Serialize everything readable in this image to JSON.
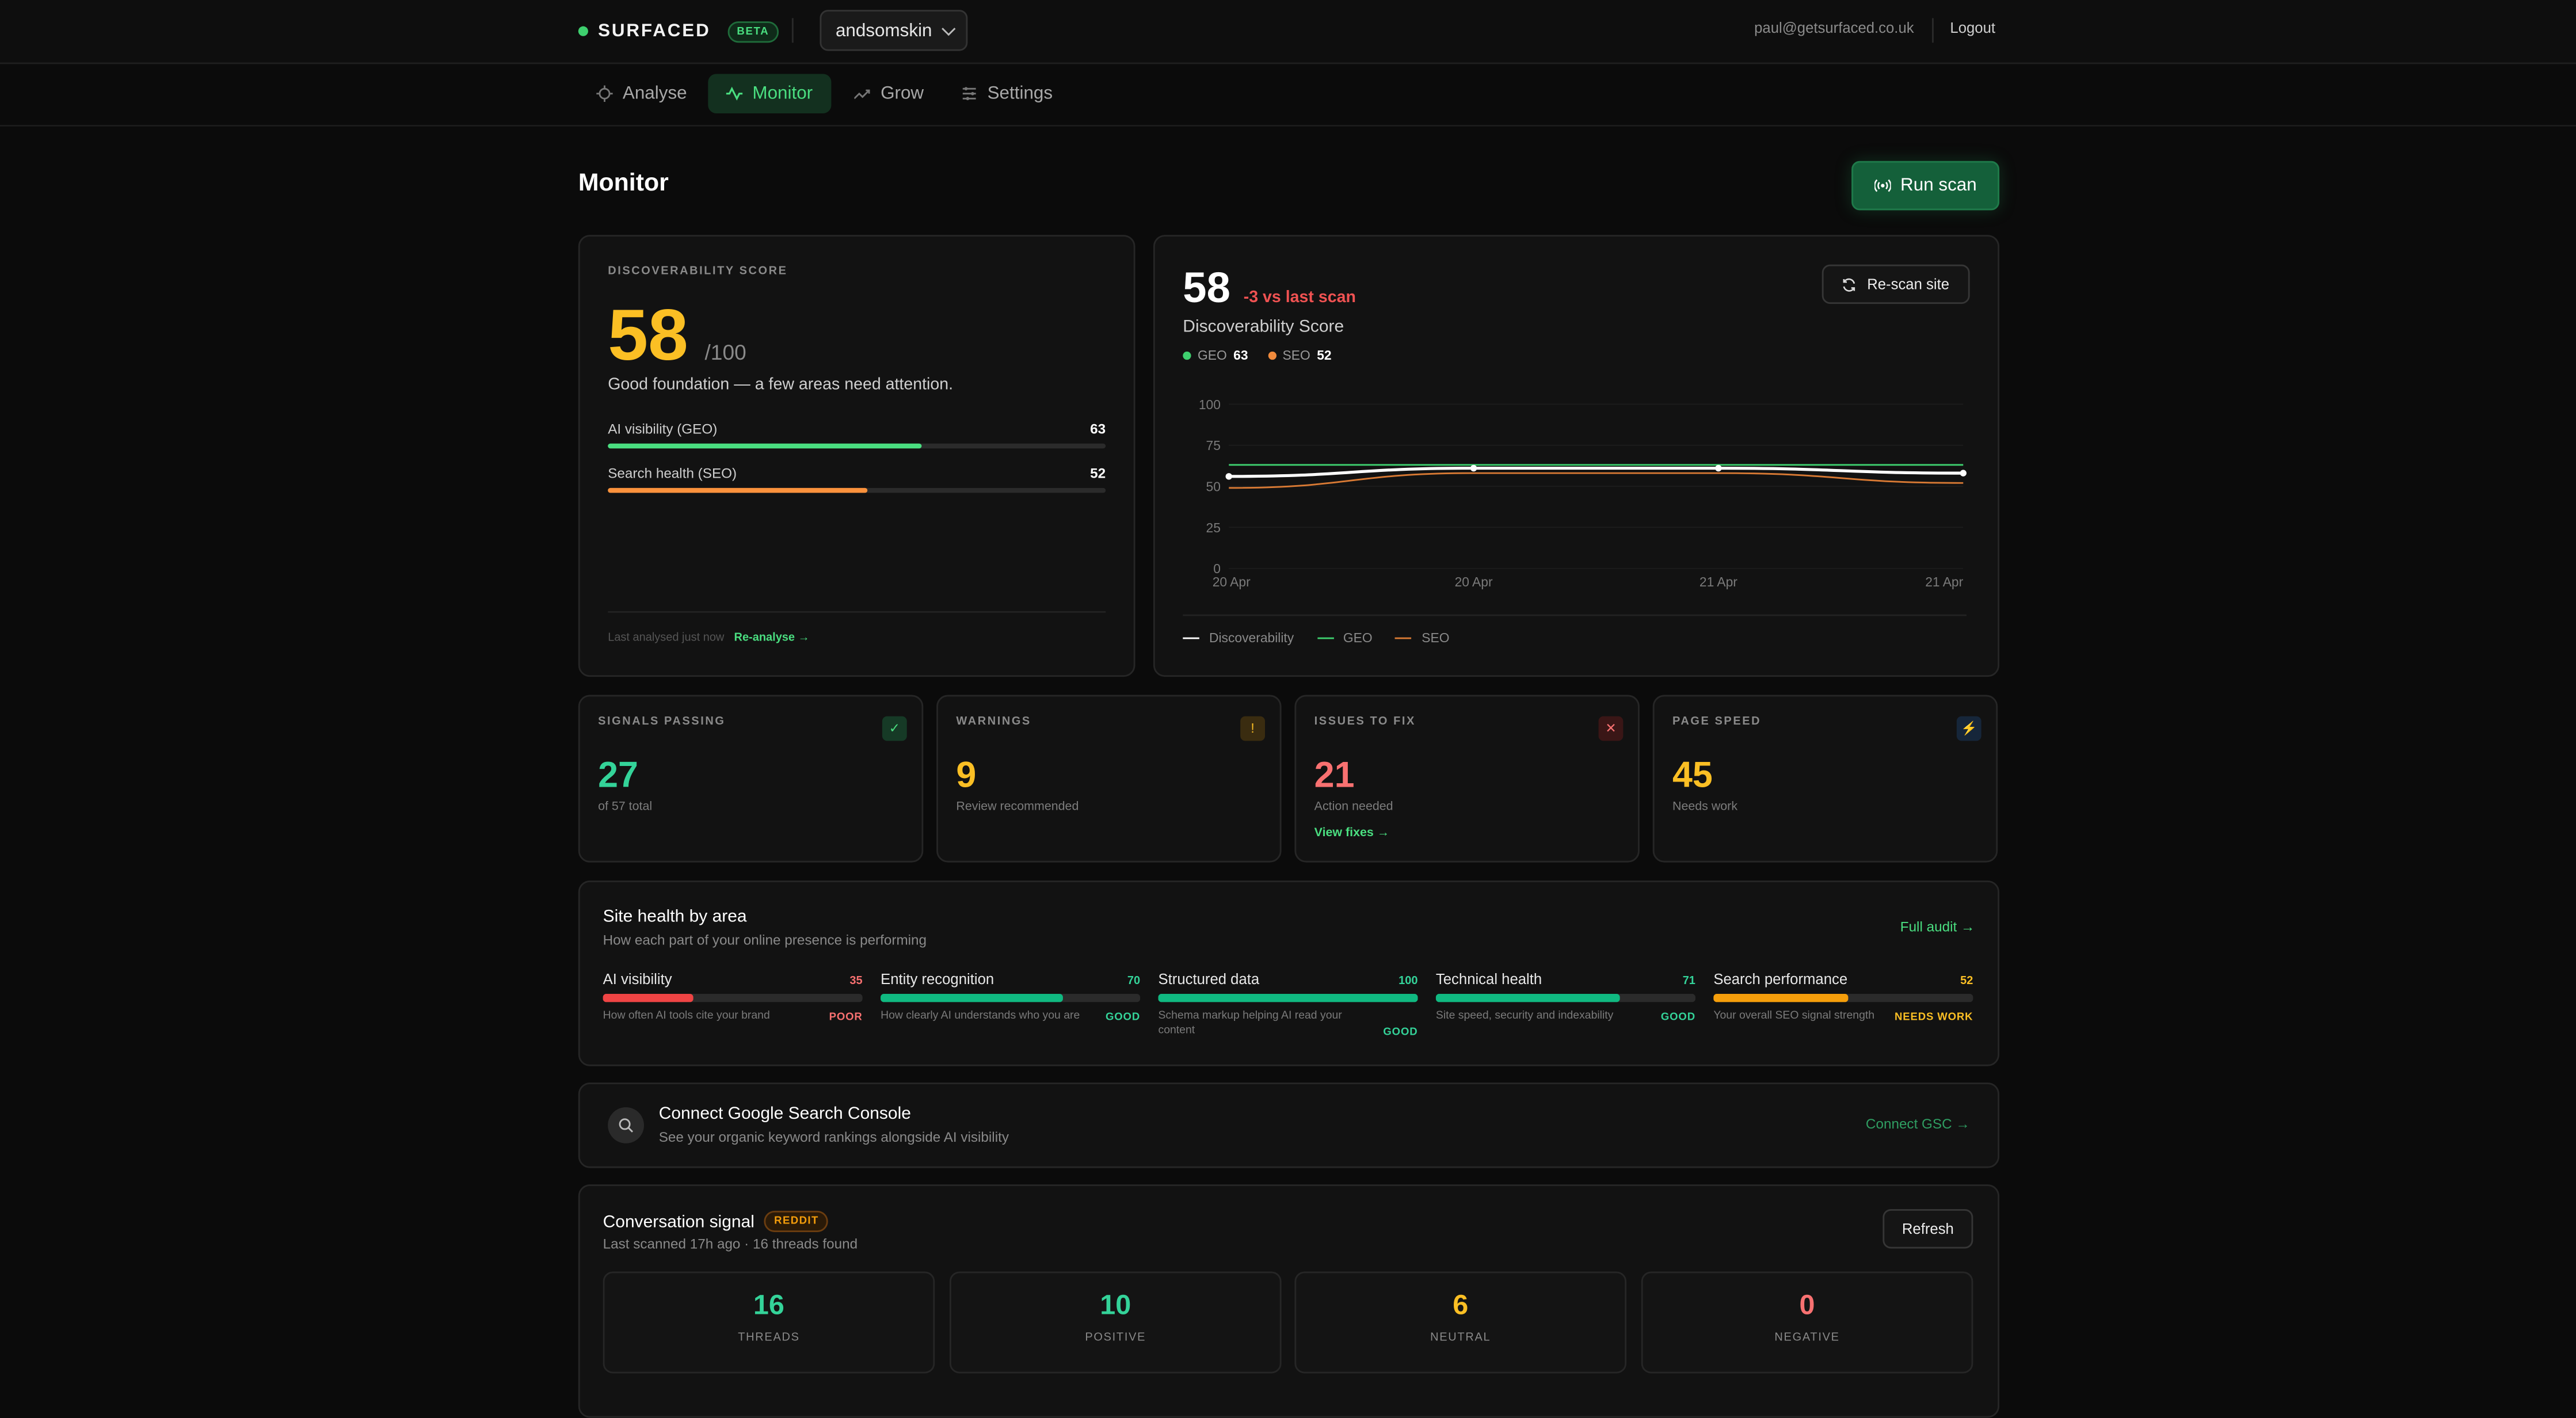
{
  "header": {
    "brand": "SURFACED",
    "beta": "BETA",
    "site": "andsomskin",
    "email": "paul@getsurfaced.co.uk",
    "logout": "Logout"
  },
  "nav": {
    "items": [
      {
        "label": "Analyse",
        "icon": "crosshair-icon",
        "active": false
      },
      {
        "label": "Monitor",
        "icon": "pulse-icon",
        "active": true
      },
      {
        "label": "Grow",
        "icon": "trend-up-icon",
        "active": false
      },
      {
        "label": "Settings",
        "icon": "sliders-icon",
        "active": false
      }
    ]
  },
  "page": {
    "title": "Monitor",
    "run_scan": "Run scan"
  },
  "score_card": {
    "label": "DISCOVERABILITY SCORE",
    "score": "58",
    "out_of": "/100",
    "summary": "Good foundation — a few areas need attention.",
    "rows": [
      {
        "label": "AI visibility (GEO)",
        "value": "63",
        "pct": 63,
        "color": "#4ade80"
      },
      {
        "label": "Search health (SEO)",
        "value": "52",
        "pct": 52,
        "color": "#fb923c"
      }
    ],
    "last_analysed": "Last analysed just now",
    "reanalyse": "Re-analyse →"
  },
  "trend_card": {
    "score": "58",
    "delta": "-3 vs last scan",
    "subtitle": "Discoverability Score",
    "geo_label": "GEO",
    "geo_value": "63",
    "seo_label": "SEO",
    "seo_value": "52",
    "rescan": "Re-scan site",
    "legend": [
      "Discoverability",
      "GEO",
      "SEO"
    ]
  },
  "chart_data": {
    "type": "line",
    "x": [
      "20 Apr",
      "20 Apr",
      "21 Apr",
      "21 Apr"
    ],
    "ylim": [
      0,
      100
    ],
    "yticks": [
      "100",
      "75",
      "50",
      "25",
      "0"
    ],
    "series": [
      {
        "name": "Discoverability",
        "values": [
          56,
          61,
          61,
          58
        ],
        "color": "#ffffff"
      },
      {
        "name": "GEO",
        "values": [
          63,
          63,
          63,
          63
        ],
        "color": "#3ecf6e"
      },
      {
        "name": "SEO",
        "values": [
          49,
          58,
          58,
          52
        ],
        "color": "#d97a34"
      }
    ]
  },
  "stats": [
    {
      "label": "SIGNALS PASSING",
      "value": "27",
      "sub": "of 57 total",
      "color": "#34d399",
      "icon": "check-icon",
      "glyph": "✓",
      "icon_bg": "#163a26",
      "icon_color": "#4ade80",
      "link": ""
    },
    {
      "label": "WARNINGS",
      "value": "9",
      "sub": "Review recommended",
      "color": "#fbbf24",
      "icon": "exclamation-icon",
      "glyph": "!",
      "icon_bg": "#3a2c10",
      "icon_color": "#fbbf24",
      "link": ""
    },
    {
      "label": "ISSUES TO FIX",
      "value": "21",
      "sub": "Action needed",
      "color": "#f87171",
      "icon": "cross-icon",
      "glyph": "✕",
      "icon_bg": "#3a1616",
      "icon_color": "#f87171",
      "link": "View fixes →"
    },
    {
      "label": "PAGE SPEED",
      "value": "45",
      "sub": "Needs work",
      "color": "#fbbf24",
      "icon": "bolt-icon",
      "glyph": "⚡",
      "icon_bg": "#16263a",
      "icon_color": "#60a5fa",
      "link": ""
    }
  ],
  "health": {
    "title": "Site health by area",
    "subtitle": "How each part of your online presence is performing",
    "full_audit": "Full audit →",
    "areas": [
      {
        "title": "AI visibility",
        "value": "35",
        "pct": 35,
        "color": "#ef4444",
        "desc": "How often AI tools cite your brand",
        "status": "POOR",
        "status_color": "#f87171"
      },
      {
        "title": "Entity recognition",
        "value": "70",
        "pct": 70,
        "color": "#10b981",
        "desc": "How clearly AI understands who you are",
        "status": "GOOD",
        "status_color": "#34d399"
      },
      {
        "title": "Structured data",
        "value": "100",
        "pct": 100,
        "color": "#10b981",
        "desc": "Schema markup helping AI read your content",
        "status": "GOOD",
        "status_color": "#34d399"
      },
      {
        "title": "Technical health",
        "value": "71",
        "pct": 71,
        "color": "#10b981",
        "desc": "Site speed, security and indexability",
        "status": "GOOD",
        "status_color": "#34d399"
      },
      {
        "title": "Search performance",
        "value": "52",
        "pct": 52,
        "color": "#f59e0b",
        "desc": "Your overall SEO signal strength",
        "status": "NEEDS WORK",
        "status_color": "#fbbf24"
      }
    ]
  },
  "gsc": {
    "title": "Connect Google Search Console",
    "subtitle": "See your organic keyword rankings alongside AI visibility",
    "cta": "Connect GSC →"
  },
  "conversation": {
    "title": "Conversation signal",
    "badge": "REDDIT",
    "subtitle": "Last scanned 17h ago · 16 threads found",
    "refresh": "Refresh",
    "stats": [
      {
        "value": "16",
        "label": "THREADS",
        "color": "#34d399"
      },
      {
        "value": "10",
        "label": "POSITIVE",
        "color": "#34d399"
      },
      {
        "value": "6",
        "label": "NEUTRAL",
        "color": "#fbbf24"
      },
      {
        "value": "0",
        "label": "NEGATIVE",
        "color": "#f87171"
      }
    ]
  }
}
